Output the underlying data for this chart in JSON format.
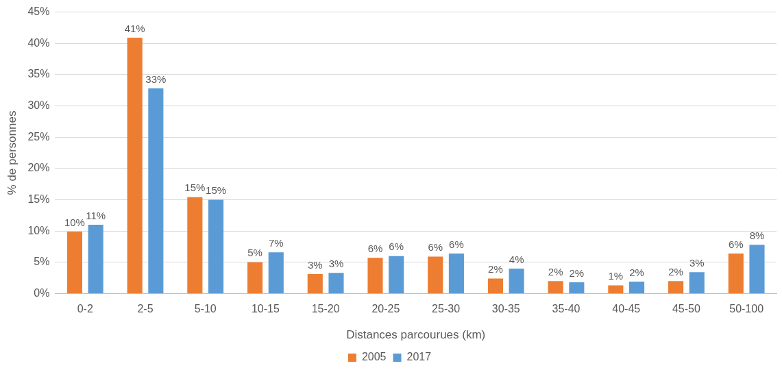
{
  "chart_data": {
    "type": "bar",
    "xlabel": "Distances parcourues (km)",
    "ylabel": "% de personnes",
    "categories": [
      "0-2",
      "2-5",
      "5-10",
      "10-15",
      "15-20",
      "20-25",
      "25-30",
      "30-35",
      "35-40",
      "40-45",
      "45-50",
      "50-100"
    ],
    "series": [
      {
        "name": "2005",
        "color": "#ed7d31",
        "values": [
          9.9,
          40.9,
          15.4,
          5.0,
          3.1,
          5.7,
          5.9,
          2.4,
          2.0,
          1.3,
          2.0,
          6.4
        ],
        "value_labels": [
          "10%",
          "41%",
          "15%",
          "5%",
          "3%",
          "6%",
          "6%",
          "2%",
          "2%",
          "1%",
          "2%",
          "6%"
        ]
      },
      {
        "name": "2017",
        "color": "#5b9bd5",
        "values": [
          11.0,
          32.8,
          15.0,
          6.6,
          3.3,
          6.0,
          6.4,
          4.0,
          1.8,
          1.9,
          3.4,
          7.8
        ],
        "value_labels": [
          "11%",
          "33%",
          "15%",
          "7%",
          "3%",
          "6%",
          "6%",
          "4%",
          "2%",
          "2%",
          "3%",
          "8%"
        ]
      }
    ],
    "ylim": [
      0,
      45
    ],
    "yticks": [
      {
        "value": 0,
        "label": "0%"
      },
      {
        "value": 5,
        "label": "5%"
      },
      {
        "value": 10,
        "label": "10%"
      },
      {
        "value": 15,
        "label": "15%"
      },
      {
        "value": 20,
        "label": "20%"
      },
      {
        "value": 25,
        "label": "25%"
      },
      {
        "value": 30,
        "label": "30%"
      },
      {
        "value": 35,
        "label": "35%"
      },
      {
        "value": 40,
        "label": "40%"
      },
      {
        "value": 45,
        "label": "45%"
      }
    ],
    "grid": "y",
    "legend": "bottom"
  }
}
